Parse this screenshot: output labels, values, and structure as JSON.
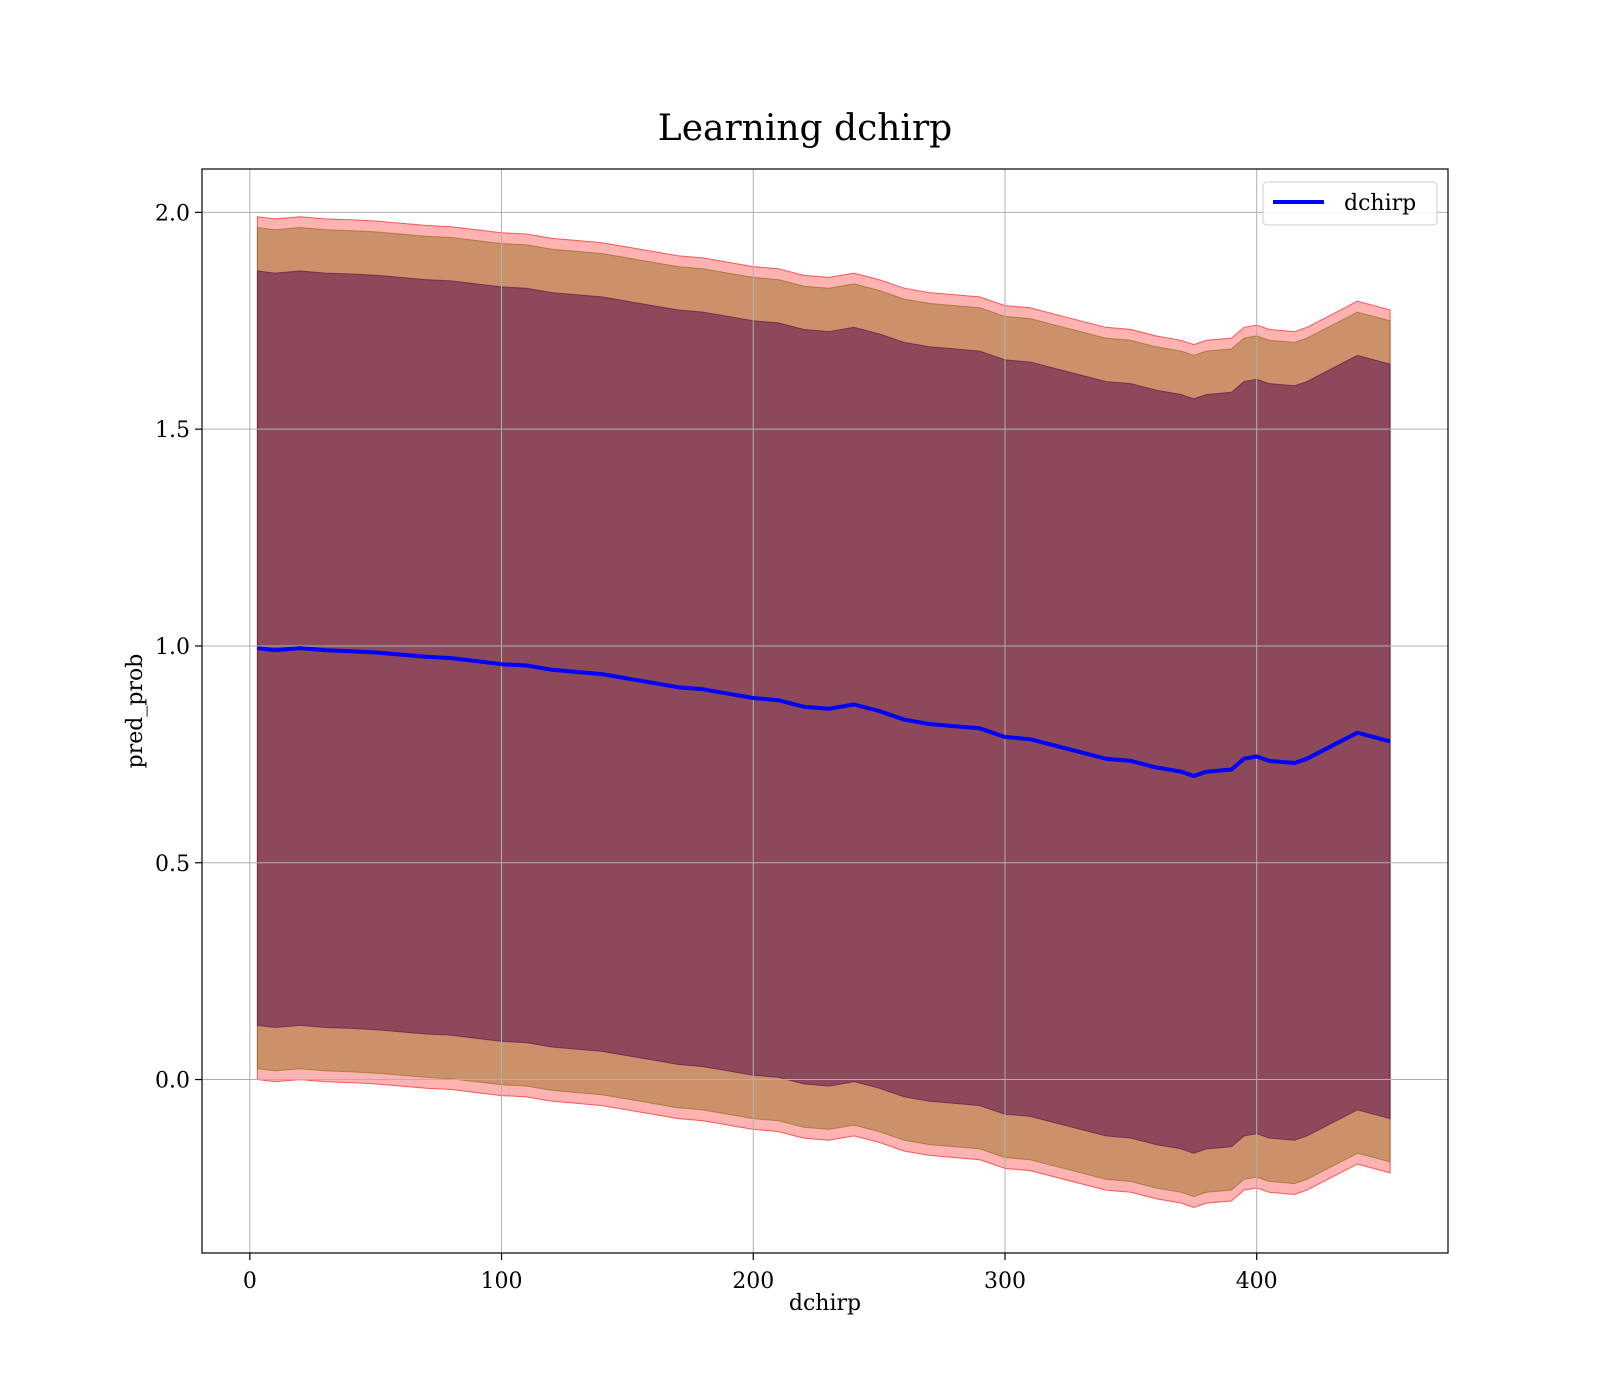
{
  "chart_data": {
    "type": "line",
    "title": "Learning dchirp",
    "xlabel": "dchirp",
    "ylabel": "pred_prob",
    "xlim": [
      -19,
      476
    ],
    "ylim": [
      -0.4,
      2.1
    ],
    "xticks": [
      0,
      100,
      200,
      300,
      400
    ],
    "yticks": [
      0.0,
      0.5,
      1.0,
      1.5,
      2.0
    ],
    "xtick_labels": [
      "0",
      "100",
      "200",
      "300",
      "400"
    ],
    "ytick_labels": [
      "0.0",
      "0.5",
      "1.0",
      "1.5",
      "2.0"
    ],
    "grid": true,
    "legend": {
      "position": "upper right",
      "entries": [
        "dchirp"
      ]
    },
    "colors": {
      "line": "#0000ff",
      "band_outer": "#ff0000",
      "band_mid": "#8b6914",
      "band_inner": "#5a0f4a",
      "grid": "#b0b0b0"
    },
    "series": [
      {
        "name": "dchirp",
        "x": [
          3,
          10,
          20,
          30,
          40,
          50,
          60,
          70,
          80,
          90,
          100,
          110,
          120,
          130,
          140,
          150,
          160,
          170,
          180,
          190,
          200,
          210,
          220,
          230,
          240,
          250,
          260,
          270,
          280,
          290,
          300,
          310,
          320,
          330,
          340,
          350,
          360,
          370,
          375,
          380,
          390,
          395,
          400,
          405,
          415,
          420,
          430,
          440,
          453
        ],
        "y": [
          0.995,
          0.99,
          0.995,
          0.99,
          0.988,
          0.985,
          0.98,
          0.975,
          0.972,
          0.965,
          0.958,
          0.955,
          0.945,
          0.94,
          0.935,
          0.925,
          0.915,
          0.905,
          0.9,
          0.89,
          0.88,
          0.875,
          0.86,
          0.855,
          0.865,
          0.85,
          0.83,
          0.82,
          0.815,
          0.81,
          0.79,
          0.785,
          0.77,
          0.755,
          0.74,
          0.735,
          0.72,
          0.71,
          0.7,
          0.71,
          0.715,
          0.74,
          0.745,
          0.735,
          0.73,
          0.74,
          0.77,
          0.8,
          0.78
        ]
      }
    ],
    "bands": [
      {
        "level": "outer",
        "half_width": 0.995
      },
      {
        "level": "mid",
        "half_width": 0.97
      },
      {
        "level": "inner",
        "half_width": 0.87
      }
    ]
  }
}
